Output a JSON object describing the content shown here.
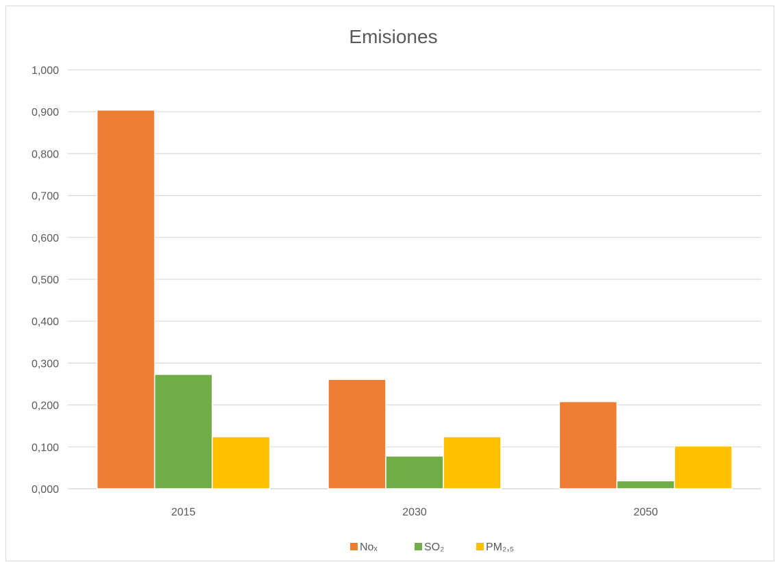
{
  "chart_data": {
    "type": "bar",
    "title": "Emisiones",
    "categories": [
      "2015",
      "2030",
      "2050"
    ],
    "series": [
      {
        "name": "Noₓ",
        "color": "#ED7D31",
        "values": [
          0.904,
          0.261,
          0.208
        ]
      },
      {
        "name": "SO₂",
        "color": "#70AD47",
        "values": [
          0.273,
          0.078,
          0.019
        ]
      },
      {
        "name": "PM₂,₅",
        "color": "#FFC000",
        "values": [
          0.124,
          0.124,
          0.102
        ]
      }
    ],
    "ylim": [
      0,
      1.0
    ],
    "yticks": [
      "0,000",
      "0,100",
      "0,200",
      "0,300",
      "0,400",
      "0,500",
      "0,600",
      "0,700",
      "0,800",
      "0,900",
      "1,000"
    ],
    "xlabel": "",
    "ylabel": "",
    "grid": true,
    "legend_position": "bottom"
  }
}
